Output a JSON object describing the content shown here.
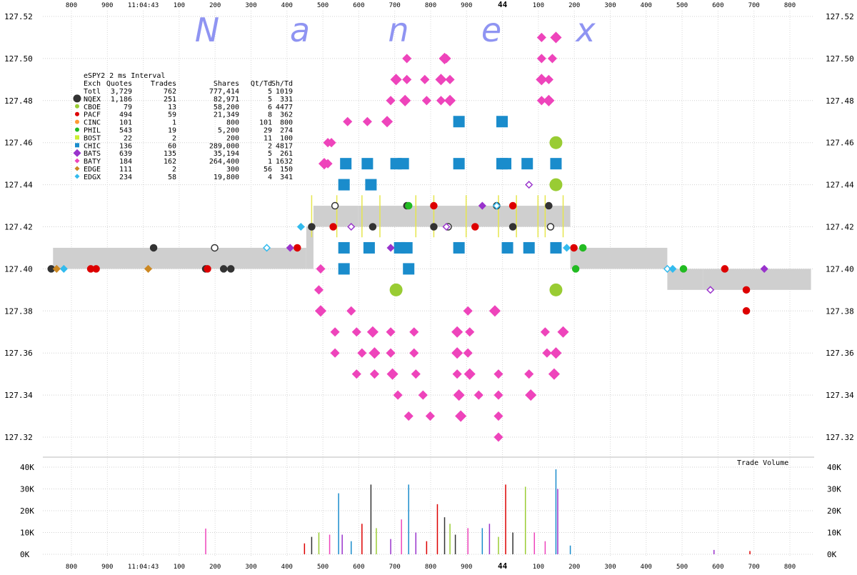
{
  "brand": {
    "letters": [
      "N",
      "a",
      "n",
      "e",
      "x"
    ],
    "color": "#8f94f2"
  },
  "chart_data": {
    "type": "scatter",
    "title": "eSPY2 2 ms Interval",
    "volume_label": "Trade Volume",
    "y_ticks": [
      "127.52",
      "127.50",
      "127.48",
      "127.46",
      "127.44",
      "127.42",
      "127.40",
      "127.38",
      "127.36",
      "127.34",
      "127.32"
    ],
    "vol_ticks": [
      "40K",
      "30K",
      "20K",
      "10K",
      "0K"
    ],
    "x_ticks": [
      "800",
      "900",
      "11:04:43",
      "100",
      "200",
      "300",
      "400",
      "500",
      "600",
      "700",
      "800",
      "900",
      "44",
      "100",
      "200",
      "300",
      "400",
      "500",
      "600",
      "700",
      "800"
    ],
    "ylim": [
      127.31,
      127.52
    ],
    "legend_headers": [
      "Exch",
      "Quotes",
      "Trades",
      "Shares",
      "Qt/Td",
      "Sh/Td"
    ],
    "legend": [
      {
        "exch": "Totl",
        "quotes": "3,729",
        "trades": "762",
        "shares": "777,414",
        "qt_td": "5",
        "sh_td": "1019",
        "marker": "none",
        "color": "#000000"
      },
      {
        "exch": "NQEX",
        "quotes": "1,186",
        "trades": "251",
        "shares": "82,971",
        "qt_td": "5",
        "sh_td": "331",
        "marker": "circle",
        "color": "#333333"
      },
      {
        "exch": "CBOE",
        "quotes": "79",
        "trades": "13",
        "shares": "58,200",
        "qt_td": "6",
        "sh_td": "4477",
        "marker": "circle",
        "color": "#99cc33"
      },
      {
        "exch": "PACF",
        "quotes": "494",
        "trades": "59",
        "shares": "21,349",
        "qt_td": "8",
        "sh_td": "362",
        "marker": "circle",
        "color": "#dd0000"
      },
      {
        "exch": "CINC",
        "quotes": "101",
        "trades": "1",
        "shares": "800",
        "qt_td": "101",
        "sh_td": "800",
        "marker": "circle",
        "color": "#ff9933"
      },
      {
        "exch": "PHIL",
        "quotes": "543",
        "trades": "19",
        "shares": "5,200",
        "qt_td": "29",
        "sh_td": "274",
        "marker": "circle",
        "color": "#22bb22"
      },
      {
        "exch": "BOST",
        "quotes": "22",
        "trades": "2",
        "shares": "200",
        "qt_td": "11",
        "sh_td": "100",
        "marker": "square",
        "color": "#ccee33"
      },
      {
        "exch": "CHIC",
        "quotes": "136",
        "trades": "60",
        "shares": "289,000",
        "qt_td": "2",
        "sh_td": "4817",
        "marker": "square",
        "color": "#1a8ccc"
      },
      {
        "exch": "BATS",
        "quotes": "639",
        "trades": "135",
        "shares": "35,194",
        "qt_td": "5",
        "sh_td": "261",
        "marker": "diamond",
        "color": "#9933cc"
      },
      {
        "exch": "BATY",
        "quotes": "184",
        "trades": "162",
        "shares": "264,400",
        "qt_td": "1",
        "sh_td": "1632",
        "marker": "diamond",
        "color": "#ee44bb"
      },
      {
        "exch": "EDGE",
        "quotes": "111",
        "trades": "2",
        "shares": "300",
        "qt_td": "56",
        "sh_td": "150",
        "marker": "diamond",
        "color": "#cc8822"
      },
      {
        "exch": "EDGX",
        "quotes": "234",
        "trades": "58",
        "shares": "19,800",
        "qt_td": "4",
        "sh_td": "341",
        "marker": "diamond",
        "color": "#33bbee"
      }
    ],
    "nbbo_band": [
      {
        "t": "11:04:42.750",
        "bid": 127.4,
        "ask": 127.41
      },
      {
        "t": "11:04:43.455",
        "bid": 127.4,
        "ask": 127.42
      },
      {
        "t": "11:04:43.475",
        "bid": 127.42,
        "ask": 127.43
      },
      {
        "t": "11:04:43.600",
        "bid": 127.42,
        "ask": 127.43
      },
      {
        "t": "11:04:44.150",
        "bid": 127.42,
        "ask": 127.43
      },
      {
        "t": "11:04:44.190",
        "bid": 127.4,
        "ask": 127.41
      },
      {
        "t": "11:04:44.460",
        "bid": 127.39,
        "ask": 127.4
      },
      {
        "t": "11:04:44.560",
        "bid": 127.39,
        "ask": 127.4
      },
      {
        "t": "11:04:44.860",
        "bid": 127.39,
        "ask": 127.4
      }
    ],
    "baty_trades": [
      {
        "t": "11:04:43.840",
        "price": 127.5
      },
      {
        "t": "11:04:43.845",
        "price": 127.5
      },
      {
        "t": "11:04:43.735",
        "price": 127.5
      },
      {
        "t": "11:04:43.705",
        "price": 127.49
      },
      {
        "t": "11:04:43.735",
        "price": 127.49
      },
      {
        "t": "11:04:43.785",
        "price": 127.49
      },
      {
        "t": "11:04:43.830",
        "price": 127.49
      },
      {
        "t": "11:04:43.855",
        "price": 127.49
      },
      {
        "t": "11:04:43.690",
        "price": 127.48
      },
      {
        "t": "11:04:43.730",
        "price": 127.48
      },
      {
        "t": "11:04:43.790",
        "price": 127.48
      },
      {
        "t": "11:04:43.830",
        "price": 127.48
      },
      {
        "t": "11:04:43.855",
        "price": 127.48
      },
      {
        "t": "11:04:43.570",
        "price": 127.47
      },
      {
        "t": "11:04:43.625",
        "price": 127.47
      },
      {
        "t": "11:04:43.680",
        "price": 127.47
      },
      {
        "t": "11:04:43.515",
        "price": 127.46
      },
      {
        "t": "11:04:43.525",
        "price": 127.46
      },
      {
        "t": "11:04:43.505",
        "price": 127.45
      },
      {
        "t": "11:04:43.515",
        "price": 127.45
      },
      {
        "t": "11:04:44.110",
        "price": 127.51
      },
      {
        "t": "11:04:44.150",
        "price": 127.51
      },
      {
        "t": "11:04:44.110",
        "price": 127.5
      },
      {
        "t": "11:04:44.140",
        "price": 127.5
      },
      {
        "t": "11:04:44.110",
        "price": 127.49
      },
      {
        "t": "11:04:44.130",
        "price": 127.49
      },
      {
        "t": "11:04:44.110",
        "price": 127.48
      },
      {
        "t": "11:04:44.130",
        "price": 127.48
      },
      {
        "t": "11:04:43.495",
        "price": 127.4
      },
      {
        "t": "11:04:43.490",
        "price": 127.39
      },
      {
        "t": "11:04:43.495",
        "price": 127.38
      },
      {
        "t": "11:04:43.580",
        "price": 127.38
      },
      {
        "t": "11:04:43.905",
        "price": 127.38
      },
      {
        "t": "11:04:43.980",
        "price": 127.38
      },
      {
        "t": "11:04:43.535",
        "price": 127.37
      },
      {
        "t": "11:04:43.595",
        "price": 127.37
      },
      {
        "t": "11:04:43.640",
        "price": 127.37
      },
      {
        "t": "11:04:43.690",
        "price": 127.37
      },
      {
        "t": "11:04:43.755",
        "price": 127.37
      },
      {
        "t": "11:04:43.875",
        "price": 127.37
      },
      {
        "t": "11:04:43.910",
        "price": 127.37
      },
      {
        "t": "11:04:44.120",
        "price": 127.37
      },
      {
        "t": "11:04:44.170",
        "price": 127.37
      },
      {
        "t": "11:04:43.535",
        "price": 127.36
      },
      {
        "t": "11:04:43.610",
        "price": 127.36
      },
      {
        "t": "11:04:43.645",
        "price": 127.36
      },
      {
        "t": "11:04:43.690",
        "price": 127.36
      },
      {
        "t": "11:04:43.755",
        "price": 127.36
      },
      {
        "t": "11:04:43.875",
        "price": 127.36
      },
      {
        "t": "11:04:43.905",
        "price": 127.36
      },
      {
        "t": "11:04:44.125",
        "price": 127.36
      },
      {
        "t": "11:04:44.150",
        "price": 127.36
      },
      {
        "t": "11:04:43.595",
        "price": 127.35
      },
      {
        "t": "11:04:43.645",
        "price": 127.35
      },
      {
        "t": "11:04:43.695",
        "price": 127.35
      },
      {
        "t": "11:04:43.760",
        "price": 127.35
      },
      {
        "t": "11:04:43.875",
        "price": 127.35
      },
      {
        "t": "11:04:43.910",
        "price": 127.35
      },
      {
        "t": "11:04:43.990",
        "price": 127.35
      },
      {
        "t": "11:04:44.075",
        "price": 127.35
      },
      {
        "t": "11:04:44.145",
        "price": 127.35
      },
      {
        "t": "11:04:43.710",
        "price": 127.34
      },
      {
        "t": "11:04:43.780",
        "price": 127.34
      },
      {
        "t": "11:04:43.880",
        "price": 127.34
      },
      {
        "t": "11:04:43.935",
        "price": 127.34
      },
      {
        "t": "11:04:43.990",
        "price": 127.34
      },
      {
        "t": "11:04:44.080",
        "price": 127.34
      },
      {
        "t": "11:04:43.740",
        "price": 127.33
      },
      {
        "t": "11:04:43.800",
        "price": 127.33
      },
      {
        "t": "11:04:43.885",
        "price": 127.33
      },
      {
        "t": "11:04:43.990",
        "price": 127.33
      },
      {
        "t": "11:04:43.990",
        "price": 127.32
      }
    ],
    "chic_trades": [
      {
        "t": "11:04:43.880",
        "price": 127.47
      },
      {
        "t": "11:04:44.000",
        "price": 127.47
      },
      {
        "t": "11:04:43.565",
        "price": 127.45
      },
      {
        "t": "11:04:43.625",
        "price": 127.45
      },
      {
        "t": "11:04:43.705",
        "price": 127.45
      },
      {
        "t": "11:04:43.725",
        "price": 127.45
      },
      {
        "t": "11:04:43.880",
        "price": 127.45
      },
      {
        "t": "11:04:44.000",
        "price": 127.45
      },
      {
        "t": "11:04:44.010",
        "price": 127.45
      },
      {
        "t": "11:04:44.070",
        "price": 127.45
      },
      {
        "t": "11:04:44.150",
        "price": 127.45
      },
      {
        "t": "11:04:43.560",
        "price": 127.44
      },
      {
        "t": "11:04:43.635",
        "price": 127.44
      },
      {
        "t": "11:04:43.560",
        "price": 127.41
      },
      {
        "t": "11:04:43.630",
        "price": 127.41
      },
      {
        "t": "11:04:43.715",
        "price": 127.41
      },
      {
        "t": "11:04:43.735",
        "price": 127.41
      },
      {
        "t": "11:04:43.880",
        "price": 127.41
      },
      {
        "t": "11:04:44.015",
        "price": 127.41
      },
      {
        "t": "11:04:44.075",
        "price": 127.41
      },
      {
        "t": "11:04:44.150",
        "price": 127.41
      },
      {
        "t": "11:04:43.560",
        "price": 127.4
      },
      {
        "t": "11:04:43.740",
        "price": 127.4
      }
    ],
    "cboe_trades": [
      {
        "t": "11:04:44.150",
        "price": 127.46
      },
      {
        "t": "11:04:44.150",
        "price": 127.44
      },
      {
        "t": "11:04:44.150",
        "price": 127.39
      },
      {
        "t": "11:04:43.705",
        "price": 127.39
      }
    ],
    "quotes": [
      {
        "exch": "NQEX",
        "points": [
          {
            "t": "11:04:42.745",
            "price": 127.4
          },
          {
            "t": "11:04:43.030",
            "price": 127.41
          },
          {
            "t": "11:04:43.175",
            "price": 127.4
          },
          {
            "t": "11:04:43.200",
            "price": 127.41
          },
          {
            "t": "11:04:43.225",
            "price": 127.4
          },
          {
            "t": "11:04:43.245",
            "price": 127.4
          },
          {
            "t": "11:04:43.470",
            "price": 127.42
          },
          {
            "t": "11:04:43.535",
            "price": 127.43
          },
          {
            "t": "11:04:43.640",
            "price": 127.42
          },
          {
            "t": "11:04:43.735",
            "price": 127.43
          },
          {
            "t": "11:04:43.810",
            "price": 127.42
          },
          {
            "t": "11:04:43.850",
            "price": 127.42
          },
          {
            "t": "11:04:43.985",
            "price": 127.43
          },
          {
            "t": "11:04:44.030",
            "price": 127.42
          },
          {
            "t": "11:04:44.130",
            "price": 127.43
          },
          {
            "t": "11:04:44.135",
            "price": 127.42
          }
        ]
      },
      {
        "exch": "PACF",
        "points": [
          {
            "t": "11:04:42.855",
            "price": 127.4
          },
          {
            "t": "11:04:42.870",
            "price": 127.4
          },
          {
            "t": "11:04:43.180",
            "price": 127.4
          },
          {
            "t": "11:04:43.430",
            "price": 127.41
          },
          {
            "t": "11:04:43.530",
            "price": 127.42
          },
          {
            "t": "11:04:43.810",
            "price": 127.43
          },
          {
            "t": "11:04:43.925",
            "price": 127.42
          },
          {
            "t": "11:04:44.030",
            "price": 127.43
          },
          {
            "t": "11:04:44.200",
            "price": 127.41
          },
          {
            "t": "11:04:44.620",
            "price": 127.4
          },
          {
            "t": "11:04:44.680",
            "price": 127.38
          },
          {
            "t": "11:04:44.680",
            "price": 127.39
          }
        ]
      },
      {
        "exch": "PHIL",
        "points": [
          {
            "t": "11:04:43.740",
            "price": 127.43
          },
          {
            "t": "11:04:44.205",
            "price": 127.4
          },
          {
            "t": "11:04:44.225",
            "price": 127.41
          },
          {
            "t": "11:04:44.505",
            "price": 127.4
          }
        ]
      },
      {
        "exch": "BATS",
        "points": [
          {
            "t": "11:04:43.410",
            "price": 127.41
          },
          {
            "t": "11:04:43.580",
            "price": 127.42
          },
          {
            "t": "11:04:43.690",
            "price": 127.41
          },
          {
            "t": "11:04:43.845",
            "price": 127.42
          },
          {
            "t": "11:04:43.945",
            "price": 127.43
          },
          {
            "t": "11:04:44.075",
            "price": 127.44
          },
          {
            "t": "11:04:44.730",
            "price": 127.4
          },
          {
            "t": "11:04:44.580",
            "price": 127.39
          }
        ]
      },
      {
        "exch": "EDGX",
        "points": [
          {
            "t": "11:04:42.780",
            "price": 127.4
          },
          {
            "t": "11:04:43.345",
            "price": 127.41
          },
          {
            "t": "11:04:43.440",
            "price": 127.42
          },
          {
            "t": "11:04:43.985",
            "price": 127.43
          },
          {
            "t": "11:04:44.180",
            "price": 127.41
          },
          {
            "t": "11:04:44.460",
            "price": 127.4
          },
          {
            "t": "11:04:44.475",
            "price": 127.4
          }
        ]
      },
      {
        "exch": "EDGE",
        "points": [
          {
            "t": "11:04:42.760",
            "price": 127.4
          },
          {
            "t": "11:04:43.015",
            "price": 127.4
          }
        ]
      }
    ],
    "trade_volume": [
      {
        "t": "11:04:43.175",
        "shares": 11800
      },
      {
        "t": "11:04:43.545",
        "shares": 28000
      },
      {
        "t": "11:04:43.555",
        "shares": 9000
      },
      {
        "t": "11:04:43.610",
        "shares": 14000
      },
      {
        "t": "11:04:43.635",
        "shares": 32000
      },
      {
        "t": "11:04:43.650",
        "shares": 12000
      },
      {
        "t": "11:04:43.720",
        "shares": 16000
      },
      {
        "t": "11:04:43.740",
        "shares": 32000
      },
      {
        "t": "11:04:43.760",
        "shares": 10000
      },
      {
        "t": "11:04:43.820",
        "shares": 23000
      },
      {
        "t": "11:04:43.840",
        "shares": 17000
      },
      {
        "t": "11:04:43.855",
        "shares": 14000
      },
      {
        "t": "11:04:43.905",
        "shares": 12000
      },
      {
        "t": "11:04:43.945",
        "shares": 12000
      },
      {
        "t": "11:04:43.965",
        "shares": 14000
      },
      {
        "t": "11:04:44.010",
        "shares": 32000
      },
      {
        "t": "11:04:44.030",
        "shares": 10000
      },
      {
        "t": "11:04:44.065",
        "shares": 31000
      },
      {
        "t": "11:04:44.090",
        "shares": 10000
      },
      {
        "t": "11:04:44.150",
        "shares": 39000
      },
      {
        "t": "11:04:44.155",
        "shares": 30000
      },
      {
        "t": "11:04:43.450",
        "shares": 5000
      },
      {
        "t": "11:04:43.470",
        "shares": 8000
      },
      {
        "t": "11:04:43.490",
        "shares": 10000
      },
      {
        "t": "11:04:43.520",
        "shares": 9000
      },
      {
        "t": "11:04:43.580",
        "shares": 6000
      },
      {
        "t": "11:04:43.690",
        "shares": 7000
      },
      {
        "t": "11:04:43.790",
        "shares": 6000
      },
      {
        "t": "11:04:43.870",
        "shares": 9000
      },
      {
        "t": "11:04:43.990",
        "shares": 8000
      },
      {
        "t": "11:04:44.120",
        "shares": 6000
      },
      {
        "t": "11:04:44.190",
        "shares": 4000
      },
      {
        "t": "11:04:44.590",
        "shares": 2000
      },
      {
        "t": "11:04:44.690",
        "shares": 1500
      }
    ]
  }
}
